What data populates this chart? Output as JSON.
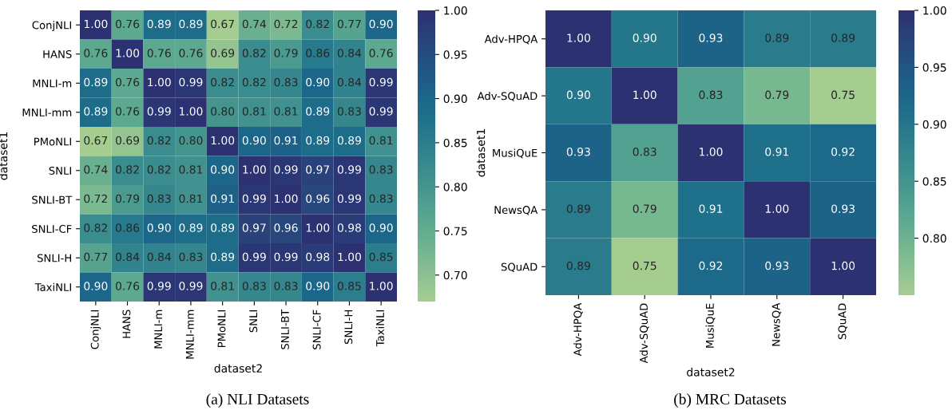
{
  "chart_data": [
    {
      "type": "heatmap",
      "title": "(a) NLI Datasets",
      "xlabel": "dataset2",
      "ylabel": "dataset1",
      "categories": [
        "ConjNLI",
        "HANS",
        "MNLI-m",
        "MNLI-mm",
        "PMoNLI",
        "SNLI",
        "SNLI-BT",
        "SNLI-CF",
        "SNLI-H",
        "TaxiNLI"
      ],
      "y_categories": [
        "ConjNLI",
        "HANS",
        "MNLI-m",
        "MNLI-mm",
        "PMoNLI",
        "SNLI",
        "SNLI-BT",
        "SNLI-CF",
        "SNLI-H",
        "TaxiNLI"
      ],
      "cells": [
        [
          1.0,
          0.76,
          0.89,
          0.89,
          0.67,
          0.74,
          0.72,
          0.82,
          0.77,
          0.9
        ],
        [
          0.76,
          1.0,
          0.76,
          0.76,
          0.69,
          0.82,
          0.79,
          0.86,
          0.84,
          0.76
        ],
        [
          0.89,
          0.76,
          1.0,
          0.99,
          0.82,
          0.82,
          0.83,
          0.9,
          0.84,
          0.99
        ],
        [
          0.89,
          0.76,
          0.99,
          1.0,
          0.8,
          0.81,
          0.81,
          0.89,
          0.83,
          0.99
        ],
        [
          0.67,
          0.69,
          0.82,
          0.8,
          1.0,
          0.9,
          0.91,
          0.89,
          0.89,
          0.81
        ],
        [
          0.74,
          0.82,
          0.82,
          0.81,
          0.9,
          1.0,
          0.99,
          0.97,
          0.99,
          0.83
        ],
        [
          0.72,
          0.79,
          0.83,
          0.81,
          0.91,
          0.99,
          1.0,
          0.96,
          0.99,
          0.83
        ],
        [
          0.82,
          0.86,
          0.9,
          0.89,
          0.89,
          0.97,
          0.96,
          1.0,
          0.98,
          0.9
        ],
        [
          0.77,
          0.84,
          0.84,
          0.83,
          0.89,
          0.99,
          0.99,
          0.98,
          1.0,
          0.85
        ],
        [
          0.9,
          0.76,
          0.99,
          0.99,
          0.81,
          0.83,
          0.83,
          0.9,
          0.85,
          1.0
        ]
      ],
      "cell_labels": [
        [
          "1.00",
          "0.76",
          "0.89",
          "0.89",
          "0.67",
          "0.74",
          "0.72",
          "0.82",
          "0.77",
          "0.90"
        ],
        [
          "0.76",
          "1.00",
          "0.76",
          "0.76",
          "0.69",
          "0.82",
          "0.79",
          "0.86",
          "0.84",
          "0.76"
        ],
        [
          "0.89",
          "0.76",
          "1.00",
          "0.99",
          "0.82",
          "0.82",
          "0.83",
          "0.90",
          "0.84",
          "0.99"
        ],
        [
          "0.89",
          "0.76",
          "0.99",
          "1.00",
          "0.80",
          "0.81",
          "0.81",
          "0.89",
          "0.83",
          "0.99"
        ],
        [
          "0.67",
          "0.69",
          "0.82",
          "0.80",
          "1.00",
          "0.90",
          "0.91",
          "0.89",
          "0.89",
          "0.81"
        ],
        [
          "0.74",
          "0.82",
          "0.82",
          "0.81",
          "0.90",
          "1.00",
          "0.99",
          "0.97",
          "0.99",
          "0.83"
        ],
        [
          "0.72",
          "0.79",
          "0.83",
          "0.81",
          "0.91",
          "0.99",
          "1.00",
          "0.96",
          "0.99",
          "0.83"
        ],
        [
          "0.82",
          "0.86",
          "0.90",
          "0.89",
          "0.89",
          "0.97",
          "0.96",
          "1.00",
          "0.98",
          "0.90"
        ],
        [
          "0.77",
          "0.84",
          "0.84",
          "0.83",
          "0.89",
          "0.99",
          "0.99",
          "0.98",
          "1.00",
          "0.85"
        ],
        [
          "0.90",
          "0.76",
          "0.99",
          "0.99",
          "0.81",
          "0.83",
          "0.83",
          "0.90",
          "0.85",
          "1.00"
        ]
      ],
      "clim": [
        0.67,
        1.0
      ],
      "cticks": [
        {
          "value": 0.7,
          "label": "0.70"
        },
        {
          "value": 0.75,
          "label": "0.75"
        },
        {
          "value": 0.8,
          "label": "0.80"
        },
        {
          "value": 0.85,
          "label": "0.85"
        },
        {
          "value": 0.9,
          "label": "0.90"
        },
        {
          "value": 0.95,
          "label": "0.95"
        },
        {
          "value": 1.0,
          "label": "1.00"
        }
      ],
      "data_labels": true
    },
    {
      "type": "heatmap",
      "title": "(b) MRC Datasets",
      "xlabel": "dataset2",
      "ylabel": "dataset1",
      "categories": [
        "Adv-HPQA",
        "Adv-SQuAD",
        "MusiQuE",
        "NewsQA",
        "SQuAD"
      ],
      "y_categories": [
        "Adv-HPQA",
        "Adv-SQuAD",
        "MusiQuE",
        "NewsQA",
        "SQuAD"
      ],
      "cells": [
        [
          1.0,
          0.9,
          0.93,
          0.89,
          0.89
        ],
        [
          0.9,
          1.0,
          0.83,
          0.79,
          0.75
        ],
        [
          0.93,
          0.83,
          1.0,
          0.91,
          0.92
        ],
        [
          0.89,
          0.79,
          0.91,
          1.0,
          0.93
        ],
        [
          0.89,
          0.75,
          0.92,
          0.93,
          1.0
        ]
      ],
      "cell_labels": [
        [
          "1.00",
          "0.90",
          "0.93",
          "0.89",
          "0.89"
        ],
        [
          "0.90",
          "1.00",
          "0.83",
          "0.79",
          "0.75"
        ],
        [
          "0.93",
          "0.83",
          "1.00",
          "0.91",
          "0.92"
        ],
        [
          "0.89",
          "0.79",
          "0.91",
          "1.00",
          "0.93"
        ],
        [
          "0.89",
          "0.75",
          "0.92",
          "0.93",
          "1.00"
        ]
      ],
      "clim": [
        0.75,
        1.0
      ],
      "cticks": [
        {
          "value": 0.8,
          "label": "0.80"
        },
        {
          "value": 0.85,
          "label": "0.85"
        },
        {
          "value": 0.9,
          "label": "0.90"
        },
        {
          "value": 0.95,
          "label": "0.95"
        },
        {
          "value": 1.0,
          "label": "1.00"
        }
      ],
      "data_labels": true
    }
  ]
}
